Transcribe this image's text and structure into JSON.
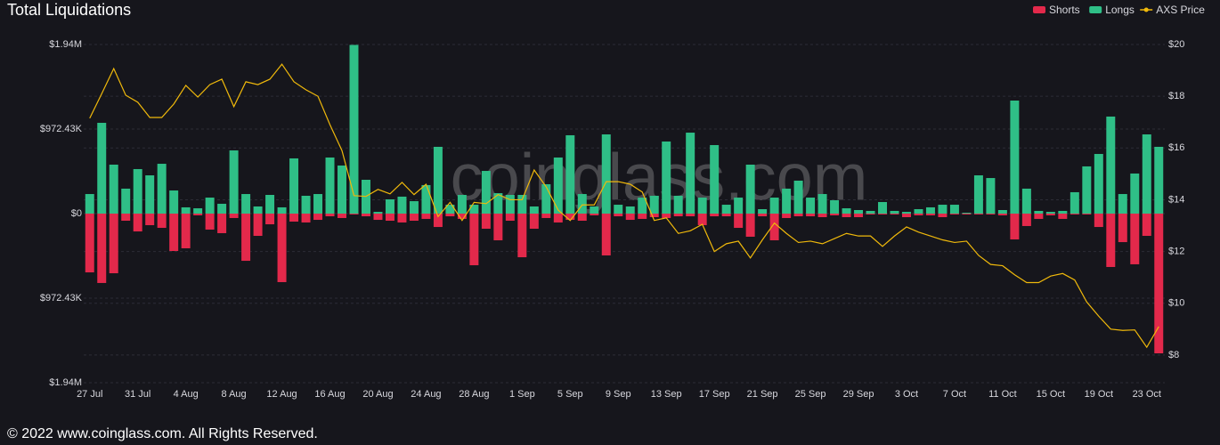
{
  "chart_data": {
    "type": "bar",
    "title": "Total Liquidations",
    "watermark": "coinglass.com",
    "footer": "© 2022 www.coinglass.com. All Rights Reserved.",
    "legend": "top-right",
    "grid": true,
    "categories": [
      "27 Jul",
      null,
      null,
      null,
      "31 Jul",
      null,
      null,
      null,
      "4 Aug",
      null,
      null,
      null,
      "8 Aug",
      null,
      null,
      null,
      "12 Aug",
      null,
      null,
      null,
      "16 Aug",
      null,
      null,
      null,
      "20 Aug",
      null,
      null,
      null,
      "24 Aug",
      null,
      null,
      null,
      "28 Aug",
      null,
      null,
      null,
      "1 Sep",
      null,
      null,
      null,
      "5 Sep",
      null,
      null,
      null,
      "9 Sep",
      null,
      null,
      null,
      "13 Sep",
      null,
      null,
      null,
      "17 Sep",
      null,
      null,
      null,
      "21 Sep",
      null,
      null,
      null,
      "25 Sep",
      null,
      null,
      null,
      "29 Sep",
      null,
      null,
      null,
      "3 Oct",
      null,
      null,
      null,
      "7 Oct",
      null,
      null,
      null,
      "11 Oct",
      null,
      null,
      null,
      "15 Oct",
      null,
      null,
      null,
      "19 Oct",
      null,
      null,
      null,
      "23 Oct",
      null
    ],
    "ylim": [
      -1944860,
      1944860
    ],
    "yticks": [
      {
        "value": 1944860,
        "label": "$1.94M"
      },
      {
        "value": 972430,
        "label": "$972.43K"
      },
      {
        "value": 0,
        "label": "$0"
      },
      {
        "value": -972430,
        "label": "$972.43K"
      },
      {
        "value": -1944860,
        "label": "$1.94M"
      }
    ],
    "y2lim": [
      6.93,
      20
    ],
    "y2ticks": [
      {
        "value": 20,
        "label": "$20"
      },
      {
        "value": 18,
        "label": "$18"
      },
      {
        "value": 16,
        "label": "$16"
      },
      {
        "value": 14,
        "label": "$14"
      },
      {
        "value": 12,
        "label": "$12"
      },
      {
        "value": 10,
        "label": "$10"
      },
      {
        "value": 8,
        "label": "$8"
      }
    ],
    "series": [
      {
        "name": "Shorts",
        "type": "bar",
        "color": "#e3294b",
        "values": [
          -676000,
          -798000,
          -686000,
          -82000,
          -205000,
          -133000,
          -164000,
          -430000,
          -399000,
          -20000,
          -184000,
          -225000,
          -51000,
          -543000,
          -256000,
          -123000,
          -788000,
          -92000,
          -102000,
          -72000,
          -31000,
          -51000,
          -10000,
          -31000,
          -72000,
          -82000,
          -102000,
          -82000,
          -61000,
          -154000,
          -31000,
          -61000,
          -594000,
          -174000,
          -307000,
          -82000,
          -502000,
          -174000,
          -51000,
          -102000,
          -72000,
          -82000,
          -20000,
          -481000,
          -31000,
          -72000,
          -61000,
          -41000,
          -51000,
          -31000,
          -31000,
          -133000,
          -31000,
          -31000,
          -164000,
          -266000,
          -31000,
          -307000,
          -51000,
          -31000,
          -31000,
          -41000,
          -20000,
          -41000,
          -41000,
          -10000,
          -10000,
          -10000,
          -41000,
          -20000,
          -20000,
          -41000,
          -10000,
          -10000,
          -10000,
          -10000,
          -20000,
          -297000,
          -143000,
          -61000,
          -20000,
          -61000,
          -10000,
          -10000,
          -154000,
          -614000,
          -328000,
          -583000,
          -256000,
          -1607000
        ]
      },
      {
        "name": "Longs",
        "type": "bar",
        "color": "#2fbf87",
        "values": [
          225000,
          1044000,
          563000,
          287000,
          512000,
          440000,
          573000,
          266000,
          72000,
          61000,
          184000,
          113000,
          727000,
          225000,
          82000,
          215000,
          72000,
          635000,
          205000,
          225000,
          645000,
          553000,
          1940000,
          389000,
          20000,
          164000,
          195000,
          143000,
          328000,
          768000,
          102000,
          215000,
          102000,
          491000,
          235000,
          215000,
          215000,
          82000,
          338000,
          645000,
          901000,
          225000,
          82000,
          911000,
          102000,
          82000,
          184000,
          205000,
          829000,
          205000,
          931000,
          184000,
          788000,
          102000,
          184000,
          563000,
          51000,
          184000,
          287000,
          379000,
          184000,
          225000,
          154000,
          61000,
          41000,
          31000,
          133000,
          31000,
          20000,
          51000,
          72000,
          102000,
          102000,
          10000,
          440000,
          409000,
          41000,
          1300000,
          287000,
          31000,
          20000,
          31000,
          246000,
          543000,
          686000,
          1116000,
          225000,
          461000,
          911000,
          768000
        ]
      },
      {
        "name": "AXS Price",
        "type": "line",
        "axis": "y2",
        "color": "#f0b90b",
        "values": [
          17.15,
          18.1,
          19.07,
          18.04,
          17.77,
          17.18,
          17.18,
          17.7,
          18.42,
          17.97,
          18.45,
          18.66,
          17.6,
          18.56,
          18.45,
          18.66,
          19.24,
          18.56,
          18.25,
          18.0,
          16.9,
          15.9,
          14.16,
          14.13,
          14.4,
          14.23,
          14.67,
          14.2,
          14.6,
          13.35,
          13.9,
          13.2,
          13.9,
          13.85,
          14.2,
          14.0,
          14.0,
          15.15,
          14.5,
          13.6,
          13.2,
          13.8,
          13.8,
          14.7,
          14.7,
          14.6,
          14.3,
          13.2,
          13.3,
          12.7,
          12.8,
          13.05,
          12.0,
          12.3,
          12.4,
          11.75,
          12.45,
          13.1,
          12.7,
          12.35,
          12.4,
          12.3,
          12.5,
          12.7,
          12.6,
          12.6,
          12.2,
          12.6,
          12.95,
          12.75,
          12.6,
          12.45,
          12.35,
          12.4,
          11.85,
          11.5,
          11.45,
          11.1,
          10.8,
          10.8,
          11.05,
          11.15,
          10.9,
          10.05,
          9.5,
          9.0,
          8.95,
          8.97,
          8.3,
          9.1
        ]
      }
    ]
  }
}
